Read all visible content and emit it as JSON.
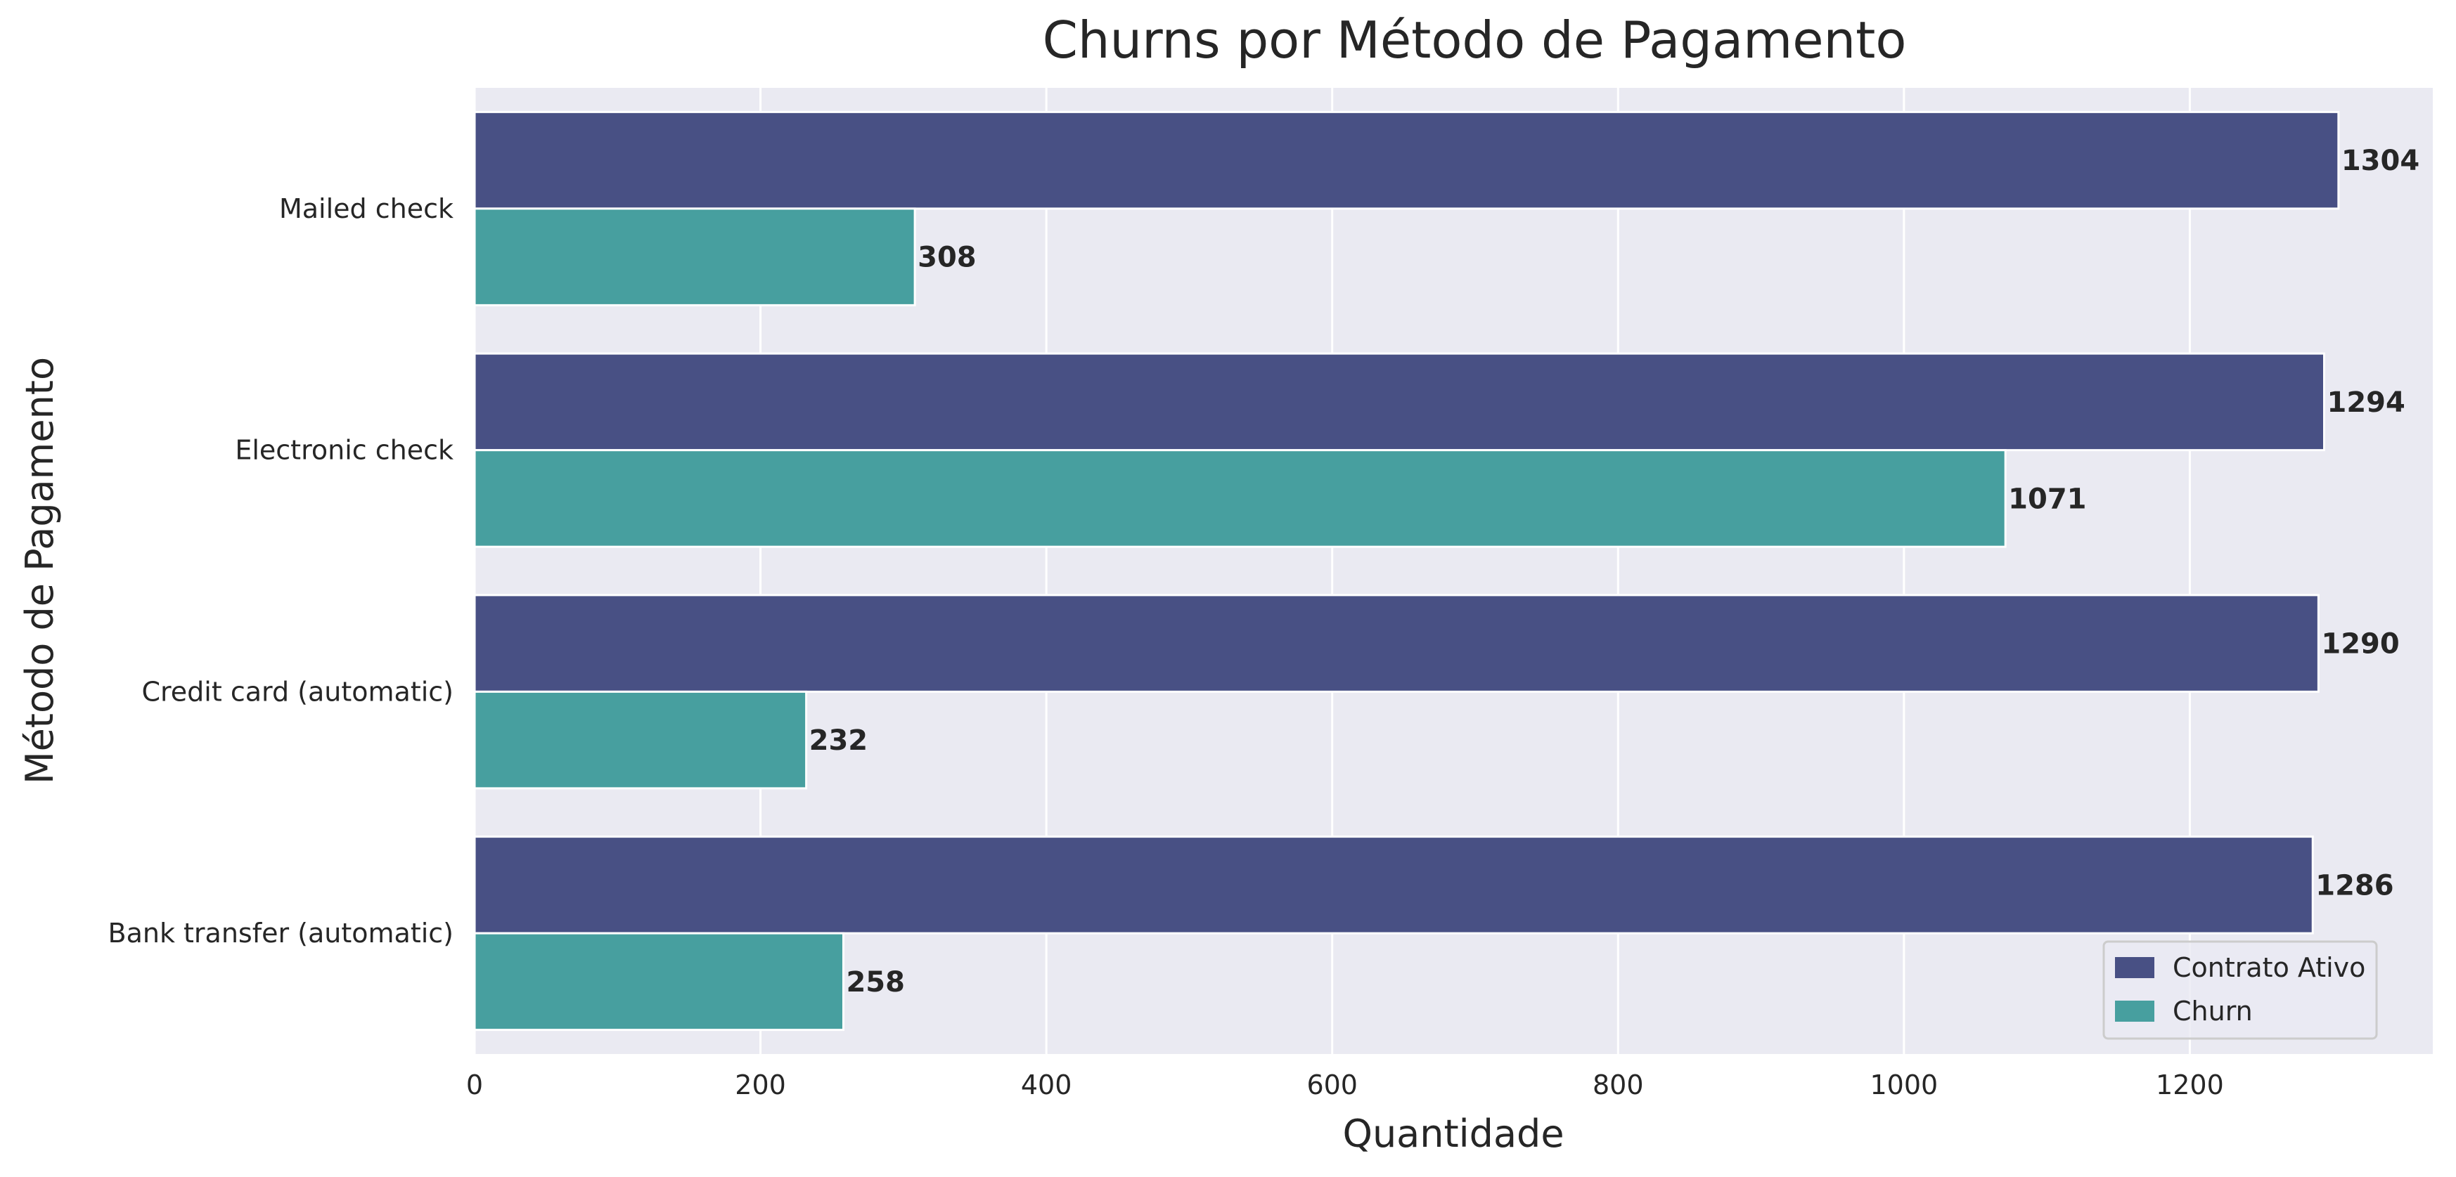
{
  "chart_data": {
    "type": "bar",
    "orientation": "horizontal",
    "title": "Churns por Método de Pagamento",
    "xlabel": "Quantidade",
    "ylabel": "Método de Pagamento",
    "categories": [
      "Mailed check",
      "Electronic check",
      "Credit card (automatic)",
      "Bank transfer (automatic)"
    ],
    "series": [
      {
        "name": "Contrato Ativo",
        "color": "#485084",
        "values": [
          1304,
          1294,
          1290,
          1286
        ]
      },
      {
        "name": "Churn",
        "color": "#479f9f",
        "values": [
          308,
          1071,
          232,
          258
        ]
      }
    ],
    "xlim": [
      0,
      1370
    ],
    "xticks": [
      0,
      200,
      400,
      600,
      800,
      1000,
      1200
    ],
    "grid": true,
    "legend_position": "lower-right",
    "background": "#eaeaf2",
    "grid_color": "#ffffff"
  }
}
